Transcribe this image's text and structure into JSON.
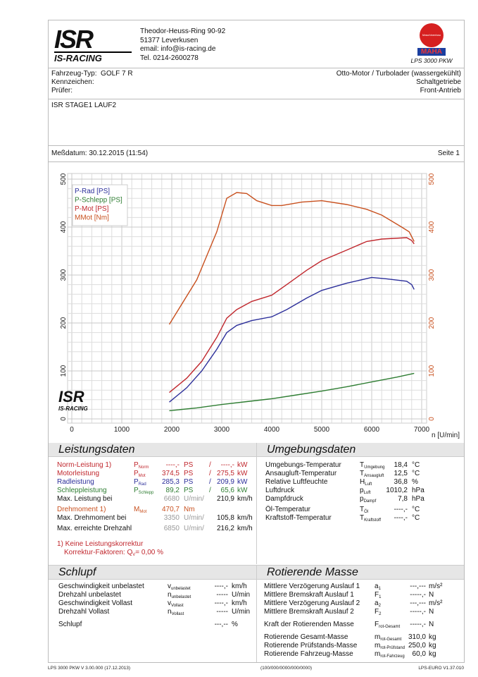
{
  "header": {
    "logo_text": "ISR",
    "logo_sub": "IS-RACING",
    "address": [
      "Theodor-Heuss-Ring 90-92",
      "51377 Leverkusen",
      "email: info@is-racing.de",
      "Tel. 0214-2600278"
    ],
    "maha_logo": "MAHA",
    "maha_badge": "Maschinenbau Haldenwang",
    "product": "LPS 3000 PKW"
  },
  "vehicle": {
    "type_label": "Fahrzeug-Typ:",
    "type_value": "GOLF 7 R",
    "plate_label": "Kennzeichen:",
    "tester_label": "Prüfer:",
    "engine": "Otto-Motor / Turbolader (wassergekühlt)",
    "gearbox": "Schaltgetriebe",
    "drive": "Front-Antrieb"
  },
  "run_title": "ISR STAGE1 LAUF2",
  "date_label": "Meßdatum: 30.12.2015 (11:54)",
  "page_label": "Seite 1",
  "colors": {
    "rad": "#2b2e9a",
    "schlepp": "#2e7d32",
    "mot": "#c0272d",
    "torque": "#c8501e"
  },
  "chart_data": {
    "type": "line",
    "xlabel": "n [U/min]",
    "xlim": [
      0,
      7000
    ],
    "ylim_left": [
      0,
      500
    ],
    "ylim_right": [
      0,
      500
    ],
    "x_ticks": [
      "0",
      "1000",
      "2000",
      "3000",
      "4000",
      "5000",
      "6000",
      "7000"
    ],
    "y_ticks": [
      "0",
      "100",
      "200",
      "300",
      "400",
      "500"
    ],
    "grid": true,
    "legend": "top-left",
    "series": [
      {
        "name": "P-Rad [PS]",
        "key": "rad",
        "x": [
          1950,
          2300,
          2600,
          2900,
          3100,
          3300,
          3600,
          4000,
          4300,
          4700,
          5000,
          5500,
          6000,
          6300,
          6700,
          6800,
          6850
        ],
        "y": [
          35,
          65,
          100,
          145,
          180,
          195,
          205,
          213,
          228,
          252,
          268,
          283,
          295,
          292,
          287,
          280,
          270
        ]
      },
      {
        "name": "P-Schlepp [PS]",
        "key": "schlepp",
        "x": [
          1950,
          2500,
          3000,
          3500,
          4000,
          4500,
          5000,
          5500,
          6000,
          6500,
          6850
        ],
        "y": [
          17,
          23,
          30,
          36,
          42,
          50,
          58,
          67,
          77,
          87,
          95
        ]
      },
      {
        "name": "P-Mot [PS]",
        "key": "mot",
        "x": [
          1950,
          2300,
          2600,
          2900,
          3100,
          3300,
          3600,
          4000,
          4300,
          4700,
          5000,
          5500,
          5900,
          6200,
          6700,
          6800,
          6850
        ],
        "y": [
          55,
          85,
          120,
          170,
          210,
          228,
          245,
          258,
          280,
          310,
          330,
          352,
          370,
          375,
          378,
          372,
          365
        ]
      },
      {
        "name": "MMot [Nm]",
        "key": "torque",
        "x": [
          1950,
          2500,
          2900,
          3100,
          3300,
          3500,
          3700,
          4000,
          4200,
          4600,
          5000,
          5500,
          5900,
          6200,
          6600,
          6750,
          6850
        ],
        "y": [
          197,
          290,
          390,
          460,
          472,
          470,
          455,
          445,
          445,
          452,
          455,
          447,
          437,
          425,
          400,
          390,
          370
        ]
      }
    ]
  },
  "leistung": {
    "title": "Leistungsdaten",
    "rows": [
      {
        "label": "Norm-Leistung 1)",
        "sym": "P",
        "sub": "Norm",
        "v1": "----,-",
        "u1": "PS",
        "sep": "/",
        "v2": "----,-",
        "u2": "kW",
        "cls": "red"
      },
      {
        "label": "Motorleistung",
        "sym": "P",
        "sub": "Mot",
        "v1": "374,5",
        "u1": "PS",
        "sep": "/",
        "v2": "275,5",
        "u2": "kW",
        "cls": "red"
      },
      {
        "label": "Radleistung",
        "sym": "P",
        "sub": "Rad",
        "v1": "285,3",
        "u1": "PS",
        "sep": "/",
        "v2": "209,9",
        "u2": "kW",
        "cls": "blue"
      },
      {
        "label": "Schleppleistung",
        "sym": "P",
        "sub": "Schlepp",
        "v1": "89,2",
        "u1": "PS",
        "sep": "/",
        "v2": "65,6",
        "u2": "kW",
        "cls": "green"
      },
      {
        "label": "Max. Leistung bei",
        "v1": "6680",
        "u1": "U/min/",
        "v2": "210,9",
        "u2": "km/h"
      },
      {
        "label": "Drehmoment 1)",
        "sym": "M",
        "sub": "Mot",
        "v1": "470,7",
        "u1": "Nm",
        "cls": "orange"
      },
      {
        "label": "Max. Drehmoment bei",
        "v1": "3350",
        "u1": "U/min/",
        "v2": "105,8",
        "u2": "km/h"
      },
      {
        "label": "Max. erreichte Drehzahl",
        "v1": "6850",
        "u1": "U/min/",
        "v2": "216,2",
        "u2": "km/h"
      }
    ],
    "note1": "1) Keine Leistungskorrektur",
    "note2": "Korrektur-Faktoren: Q",
    "note2_sub": "V",
    "note2_val": "=   0,00 %"
  },
  "umgebung": {
    "title": "Umgebungsdaten",
    "rows": [
      {
        "label": "Umgebungs-Temperatur",
        "sym": "T",
        "sub": "Umgebung",
        "v": "18,4",
        "u": "°C"
      },
      {
        "label": "Ansaugluft-Temperatur",
        "sym": "T",
        "sub": "Ansaugluft",
        "v": "12,5",
        "u": "°C"
      },
      {
        "label": "Relative Luftfeuchte",
        "sym": "H",
        "sub": "Luft",
        "v": "36,8",
        "u": "%"
      },
      {
        "label": "Luftdruck",
        "sym": "p",
        "sub": "Luft",
        "v": "1010,2",
        "u": "hPa"
      },
      {
        "label": "Dampfdruck",
        "sym": "p",
        "sub": "Dampf",
        "v": "7,8",
        "u": "hPa"
      },
      {
        "label": "Öl-Temperatur",
        "sym": "T",
        "sub": "Öl",
        "v": "----,-",
        "u": "°C"
      },
      {
        "label": "Kraftstoff-Temperatur",
        "sym": "T",
        "sub": "Kraftstoff",
        "v": "----,-",
        "u": "°C"
      }
    ]
  },
  "schlupf": {
    "title": "Schlupf",
    "rows": [
      {
        "label": "Geschwindigkeit unbelastet",
        "sym": "v",
        "sub": "unbelastet",
        "v": "----,-",
        "u": "km/h"
      },
      {
        "label": "Drehzahl unbelastet",
        "sym": "n",
        "sub": "unbelastet",
        "v": "-----",
        "u": "U/min"
      },
      {
        "label": "Geschwindigkeit Vollast",
        "sym": "v",
        "sub": "Vollast",
        "v": "----,-",
        "u": "km/h"
      },
      {
        "label": "Drehzahl Vollast",
        "sym": "n",
        "sub": "Vollast",
        "v": "-----",
        "u": "U/min"
      },
      {
        "label": "Schlupf",
        "v": "---,--",
        "u": "%"
      }
    ]
  },
  "masse": {
    "title": "Rotierende Masse",
    "rows": [
      {
        "label": "Mittlere Verzögerung Auslauf 1",
        "sym": "a",
        "sub": "1",
        "v": "---,---",
        "u": "m/s²"
      },
      {
        "label": "Mittlere Bremskraft Auslauf 1",
        "sym": "F",
        "sub": "1",
        "v": "-----,-",
        "u": "N"
      },
      {
        "label": "Mittlere Verzögerung Auslauf 2",
        "sym": "a",
        "sub": "2",
        "v": "---,---",
        "u": "m/s²"
      },
      {
        "label": "Mittlere Bremskraft Auslauf 2",
        "sym": "F",
        "sub": "2",
        "v": "-----,-",
        "u": "N"
      },
      {
        "label": "Kraft der Rotierenden Masse",
        "sym": "F",
        "sub": "rot-Gesamt",
        "v": "-----,-",
        "u": "N"
      },
      {
        "label": "Rotierende Gesamt-Masse",
        "sym": "m",
        "sub": "rot-Gesamt",
        "v": "310,0",
        "u": "kg"
      },
      {
        "label": "Rotierende Prüfstands-Masse",
        "sym": "m",
        "sub": "rot-Prüfstand",
        "v": "250,0",
        "u": "kg"
      },
      {
        "label": "Rotierende Fahrzeug-Masse",
        "sym": "m",
        "sub": "rot-Fahrzeug",
        "v": "60,0",
        "u": "kg"
      }
    ]
  },
  "footer": {
    "left": "LPS 3000 PKW V 3.00.000 (17.12.2013)",
    "center": "(100/000/0000/000/0000)",
    "right": "LPS-EURO V1.37.010"
  }
}
